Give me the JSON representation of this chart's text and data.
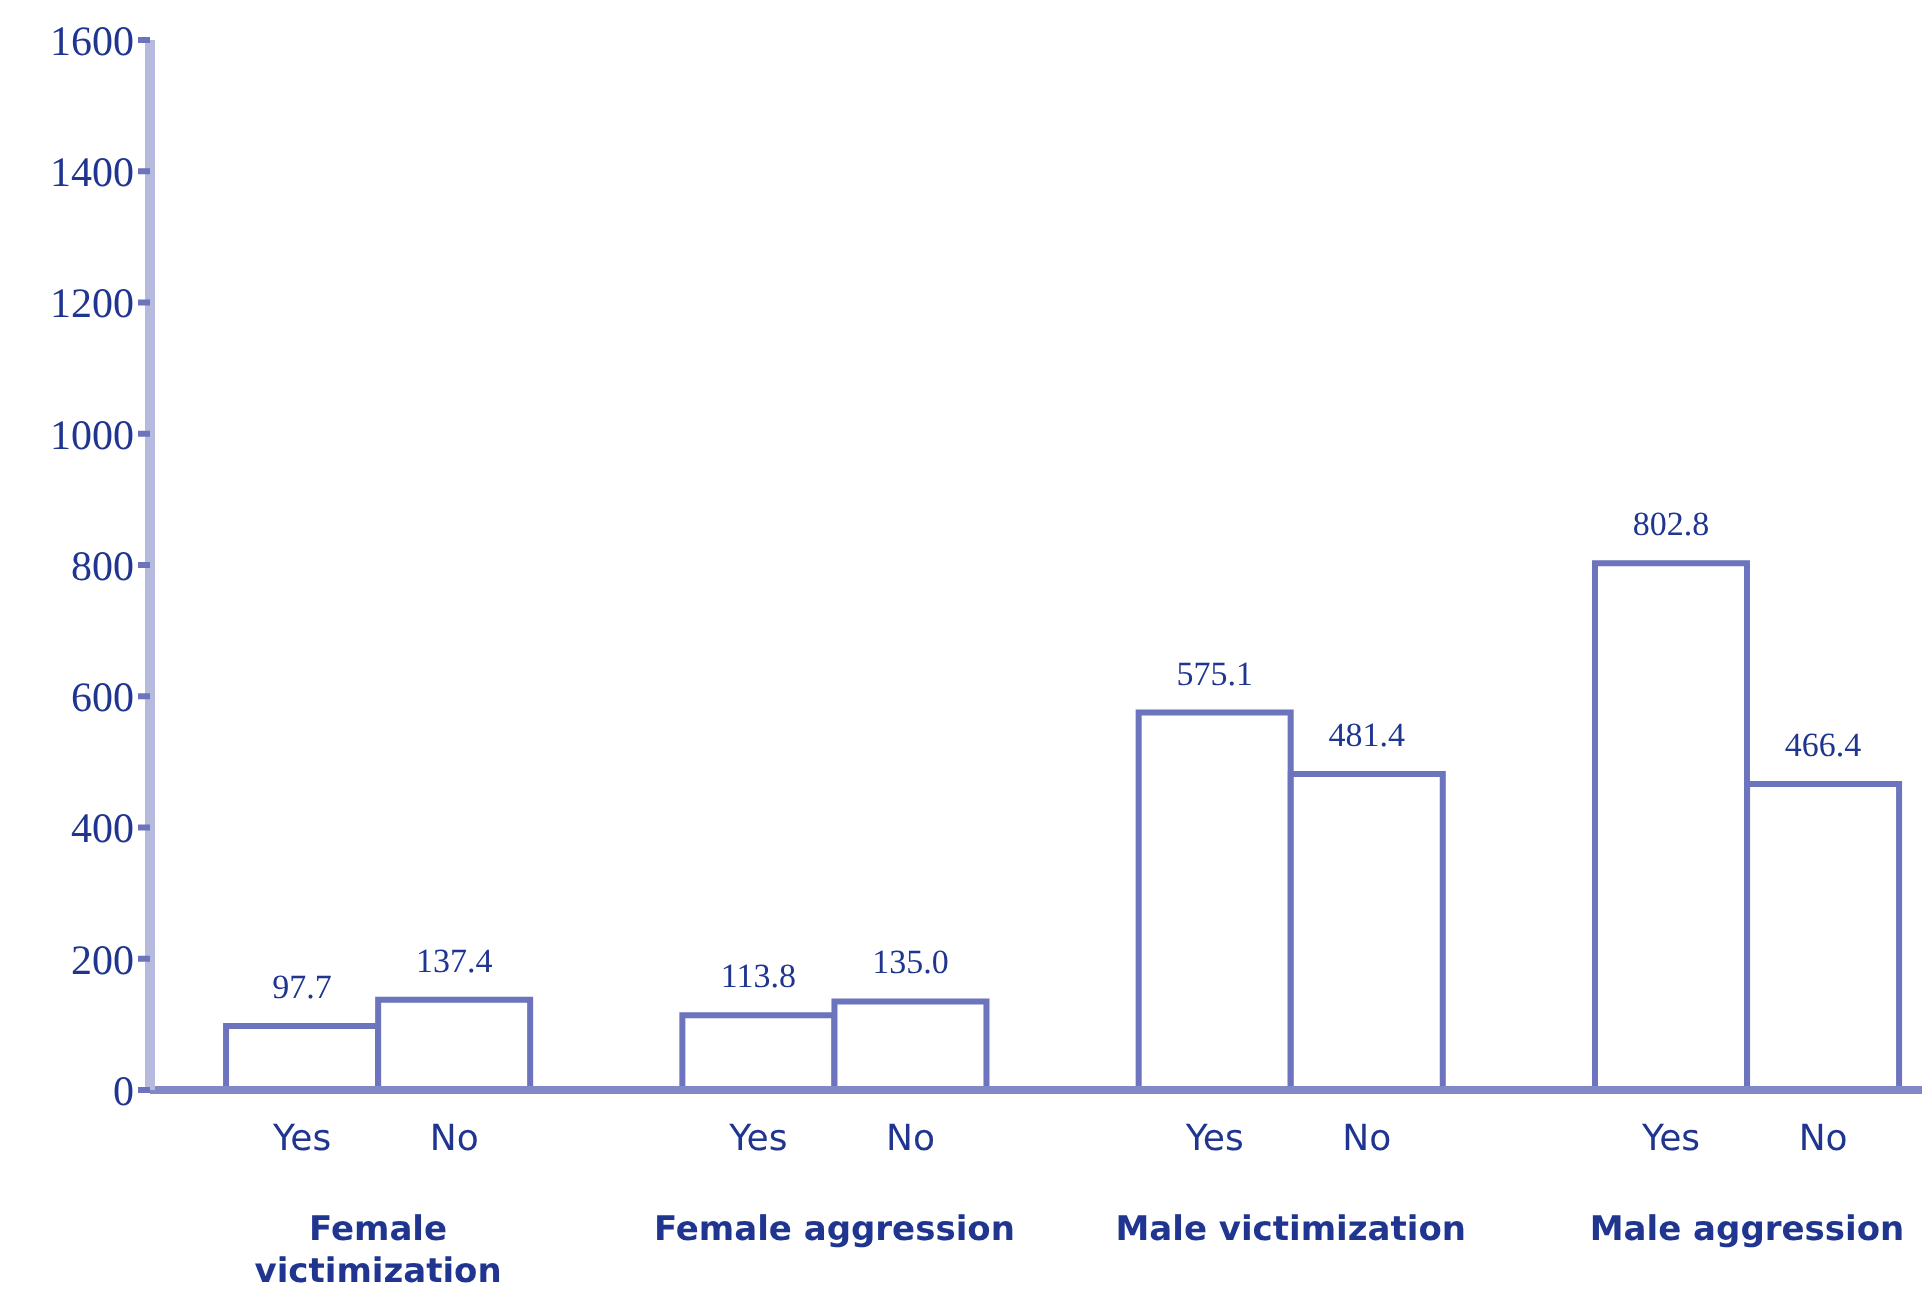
{
  "chart_data": {
    "type": "bar",
    "categories": [
      "Yes",
      "No",
      "Yes",
      "No",
      "Yes",
      "No",
      "Yes",
      "No"
    ],
    "values": [
      97.7,
      137.4,
      113.8,
      135.0,
      575.1,
      481.4,
      802.8,
      466.4
    ],
    "value_labels": [
      "97.7",
      "137.4",
      "113.8",
      "135.0",
      "575.1",
      "481.4",
      "802.8",
      "466.4"
    ],
    "color": "#6b74bd",
    "ylim": [
      0,
      1600
    ],
    "yticks": [
      0,
      200,
      400,
      600,
      800,
      1000,
      1200,
      1400,
      1600
    ],
    "annotations": [
      "Female victimization",
      "Female aggression",
      "Male victimization",
      "Male aggression"
    ],
    "grid": false,
    "legend": false
  }
}
